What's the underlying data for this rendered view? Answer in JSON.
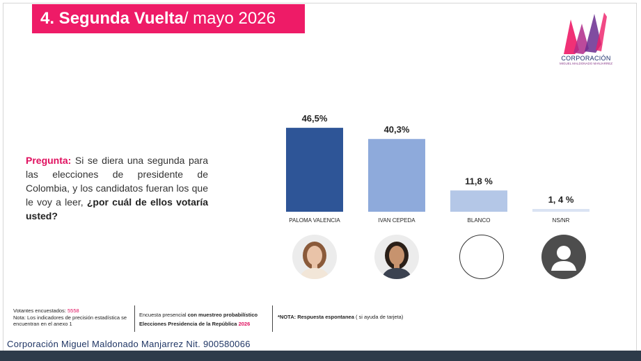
{
  "header": {
    "title_main": "4. Segunda Vuelta",
    "title_sub": "/ mayo 2026"
  },
  "logo": {
    "text": "CORPORACIÓN",
    "subtext": "MIGUEL MALDONADO MANJARREZ"
  },
  "question": {
    "label": "Pregunta:",
    "text": " Si se diera una segunda para las elecciones de presidente de Colombia, y los candidatos fueran los que le voy a leer,",
    "ask": "¿por cuál de ellos votaría usted?"
  },
  "chart_data": {
    "type": "bar",
    "categories": [
      "PALOMA VALENCIA",
      "IVAN CEPEDA",
      "BLANCO",
      "NS/NR"
    ],
    "values": [
      46.5,
      40.3,
      11.8,
      1.4
    ],
    "value_labels": [
      "46,5%",
      "40,3%",
      "11,8 %",
      "1, 4 %"
    ],
    "colors": [
      "#2e5597",
      "#8eaadb",
      "#b4c7e7",
      "#dae3f3"
    ],
    "title": "",
    "xlabel": "",
    "ylabel": "",
    "ylim": [
      0,
      50
    ],
    "grid": false
  },
  "avatars": [
    {
      "name": "paloma-valencia-photo",
      "kind": "photo",
      "hair": "#8a5a3a",
      "skin": "#e9c3a8",
      "clothes": "#f2e6d8"
    },
    {
      "name": "ivan-cepeda-photo",
      "kind": "photo",
      "hair": "#2a1f18",
      "skin": "#c7936e",
      "clothes": "#3b4250"
    },
    {
      "name": "blanco-circle",
      "kind": "empty"
    },
    {
      "name": "nsnr-user",
      "kind": "user"
    }
  ],
  "footer": {
    "votantes_label": "Votantes encuestados:",
    "votantes_value": "5558",
    "nota": "Nota: Los indicadores de precisión estadística se encuentran en el anexo 1",
    "encuesta_prefix": "Encuesta presencial",
    "encuesta_bold": "con muestreo probabilístico",
    "elecciones": "Elecciones Presidencia de la República",
    "year": "2026",
    "nota2_bold": "*NOTA: Respuesta espontanea",
    "nota2_rest": " ( si ayuda de tarjeta)",
    "company": "Corporación Miguel Maldonado Manjarrez Nit. 900580066"
  }
}
